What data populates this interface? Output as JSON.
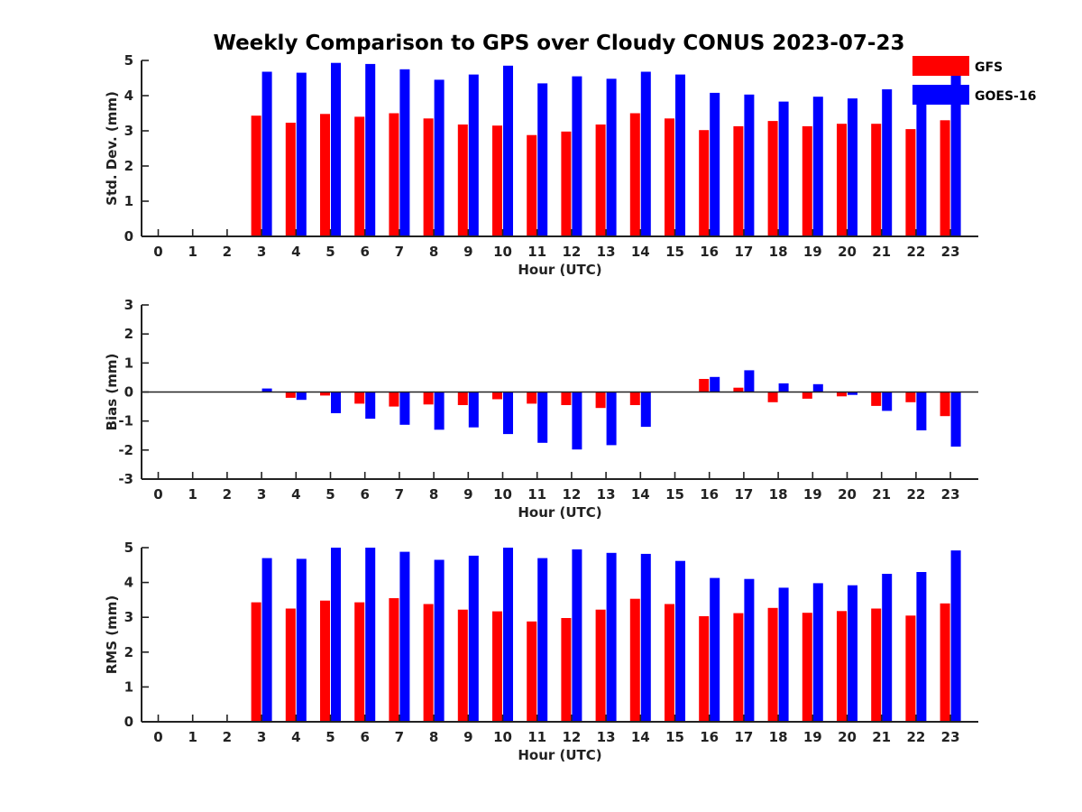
{
  "title": "Weekly Comparison to GPS over Cloudy CONUS 2023-07-23",
  "legend": {
    "placement": "top-right",
    "items": [
      {
        "label": "GFS",
        "color": "#ff0000"
      },
      {
        "label": "GOES-16",
        "color": "#0000ff"
      }
    ]
  },
  "chart_data": [
    {
      "type": "bar",
      "xlabel": "Hour (UTC)",
      "ylabel": "Std. Dev. (mm)",
      "ylim": [
        0,
        5
      ],
      "yticks": [
        0,
        1,
        2,
        3,
        4,
        5
      ],
      "categories": [
        "0",
        "1",
        "2",
        "3",
        "4",
        "5",
        "6",
        "7",
        "8",
        "9",
        "10",
        "11",
        "12",
        "13",
        "14",
        "15",
        "16",
        "17",
        "18",
        "19",
        "20",
        "21",
        "22",
        "23"
      ],
      "series": [
        {
          "name": "GFS",
          "color": "#ff0000",
          "values": [
            null,
            null,
            null,
            3.43,
            3.23,
            3.48,
            3.4,
            3.5,
            3.35,
            3.18,
            3.15,
            2.88,
            2.98,
            3.18,
            3.5,
            3.35,
            3.02,
            3.13,
            3.28,
            3.13,
            3.2,
            3.2,
            3.05,
            3.3
          ]
        },
        {
          "name": "GOES-16",
          "color": "#0000ff",
          "values": [
            null,
            null,
            null,
            4.68,
            4.65,
            4.93,
            4.9,
            4.75,
            4.45,
            4.6,
            4.85,
            4.35,
            4.55,
            4.48,
            4.68,
            4.6,
            4.08,
            4.03,
            3.83,
            3.97,
            3.92,
            4.18,
            4.08,
            4.58
          ]
        }
      ]
    },
    {
      "type": "bar",
      "xlabel": "Hour (UTC)",
      "ylabel": "Bias (mm)",
      "ylim": [
        -3,
        3
      ],
      "yticks": [
        -3,
        -2,
        -1,
        0,
        1,
        2,
        3
      ],
      "categories": [
        "0",
        "1",
        "2",
        "3",
        "4",
        "5",
        "6",
        "7",
        "8",
        "9",
        "10",
        "11",
        "12",
        "13",
        "14",
        "15",
        "16",
        "17",
        "18",
        "19",
        "20",
        "21",
        "22",
        "23"
      ],
      "series": [
        {
          "name": "GFS",
          "color": "#ff0000",
          "values": [
            null,
            null,
            null,
            0.0,
            -0.2,
            -0.12,
            -0.4,
            -0.5,
            -0.43,
            -0.45,
            -0.25,
            -0.4,
            -0.45,
            -0.55,
            -0.45,
            0.0,
            0.45,
            0.15,
            -0.35,
            -0.23,
            -0.15,
            -0.48,
            -0.35,
            -0.83
          ]
        },
        {
          "name": "GOES-16",
          "color": "#0000ff",
          "values": [
            null,
            null,
            null,
            0.12,
            -0.27,
            -0.73,
            -0.92,
            -1.13,
            -1.3,
            -1.22,
            -1.45,
            -1.75,
            -1.98,
            -1.83,
            -1.2,
            0.0,
            0.52,
            0.75,
            0.3,
            0.27,
            -0.1,
            -0.65,
            -1.32,
            -1.88
          ]
        }
      ]
    },
    {
      "type": "bar",
      "xlabel": "Hour (UTC)",
      "ylabel": "RMS (mm)",
      "ylim": [
        0,
        5
      ],
      "yticks": [
        0,
        1,
        2,
        3,
        4,
        5
      ],
      "categories": [
        "0",
        "1",
        "2",
        "3",
        "4",
        "5",
        "6",
        "7",
        "8",
        "9",
        "10",
        "11",
        "12",
        "13",
        "14",
        "15",
        "16",
        "17",
        "18",
        "19",
        "20",
        "21",
        "22",
        "23"
      ],
      "series": [
        {
          "name": "GFS",
          "color": "#ff0000",
          "values": [
            null,
            null,
            null,
            3.43,
            3.25,
            3.48,
            3.43,
            3.55,
            3.38,
            3.22,
            3.17,
            2.88,
            2.98,
            3.22,
            3.53,
            3.38,
            3.03,
            3.12,
            3.27,
            3.13,
            3.18,
            3.25,
            3.05,
            3.4
          ]
        },
        {
          "name": "GOES-16",
          "color": "#0000ff",
          "values": [
            null,
            null,
            null,
            4.7,
            4.68,
            5.0,
            5.0,
            4.88,
            4.65,
            4.77,
            5.0,
            4.7,
            4.95,
            4.85,
            4.82,
            4.62,
            4.13,
            4.1,
            3.85,
            3.98,
            3.92,
            4.25,
            4.3,
            4.92
          ]
        }
      ]
    }
  ]
}
